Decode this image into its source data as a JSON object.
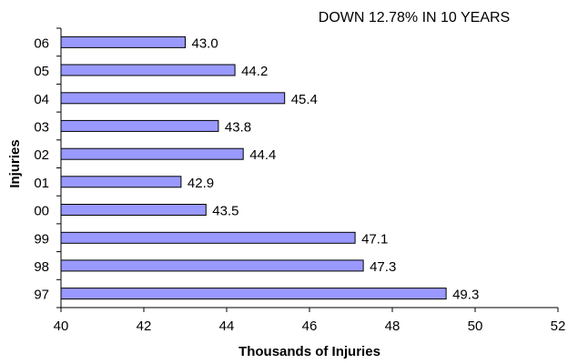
{
  "chart_data": {
    "type": "bar",
    "orientation": "horizontal",
    "annotation": "DOWN 12.78% IN 10 YEARS",
    "title": "",
    "xlabel": "Thousands of Injuries",
    "ylabel": "Injuries",
    "categories": [
      "06",
      "05",
      "04",
      "03",
      "02",
      "01",
      "00",
      "99",
      "98",
      "97"
    ],
    "values": [
      43.0,
      44.2,
      45.4,
      43.8,
      44.4,
      42.9,
      43.5,
      47.1,
      47.3,
      49.3
    ],
    "value_labels": [
      "43.0",
      "44.2",
      "45.4",
      "43.8",
      "44.4",
      "42.9",
      "43.5",
      "47.1",
      "47.3",
      "49.3"
    ],
    "xlim": [
      40,
      52
    ],
    "xticks": [
      "40",
      "42",
      "44",
      "46",
      "48",
      "50",
      "52"
    ],
    "grid": false,
    "bar_color": "#9999ff",
    "bar_edge_color": "#000000"
  }
}
